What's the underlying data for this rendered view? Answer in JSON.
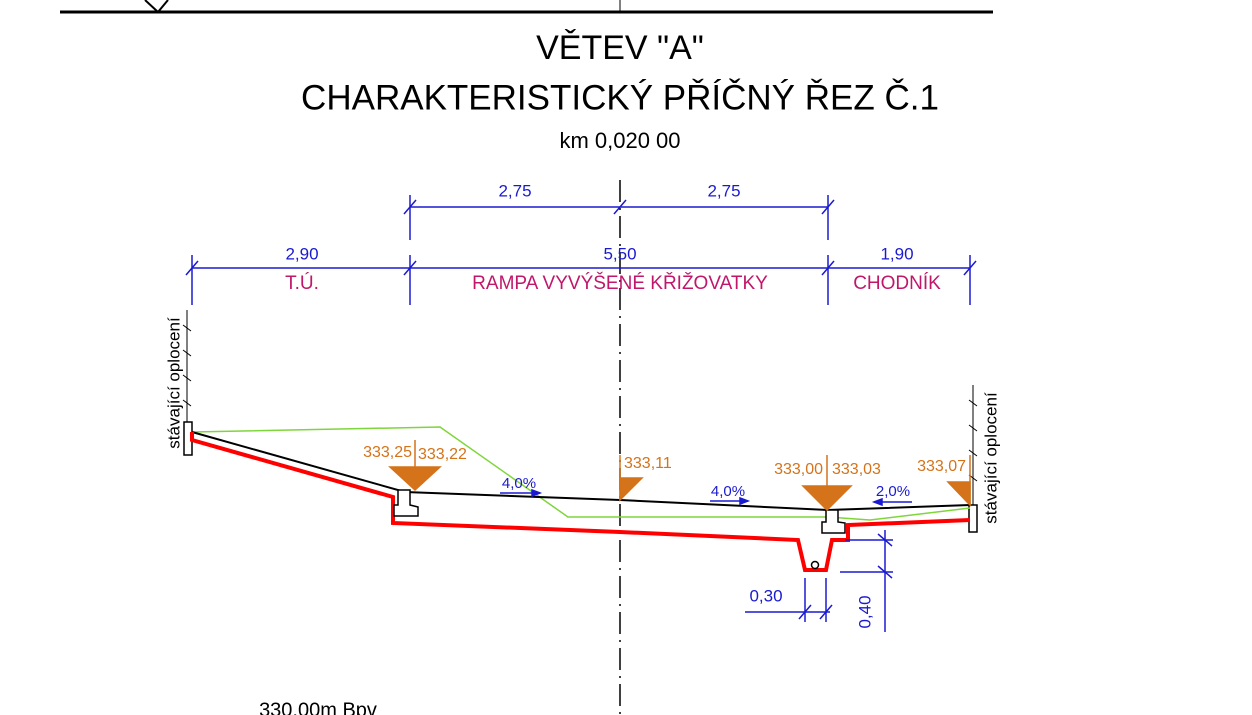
{
  "header": {
    "title": "VĚTEV \"A\"",
    "subtitle": "CHARAKTERISTICKÝ PŘÍČNÝ ŘEZ Č.1",
    "station": "km 0,020 00"
  },
  "dimensions_top": [
    "2,75",
    "2,75"
  ],
  "dimensions_main": [
    "2,90",
    "5,50",
    "1,90"
  ],
  "sections": [
    "T.Ú.",
    "RAMPA VYVÝŠENÉ KŘIŽOVATKY",
    "CHODNÍK"
  ],
  "fences": [
    "stávající oplocení",
    "stávající oplocení"
  ],
  "elevations": [
    "333,25",
    "333,22",
    "333,11",
    "333,00",
    "333,03",
    "333,07"
  ],
  "slopes": [
    "4,0%",
    "4,0%",
    "2,0%"
  ],
  "ditch_dimensions": [
    "0,30",
    "0,40"
  ],
  "datum": "330,00m Bpv"
}
